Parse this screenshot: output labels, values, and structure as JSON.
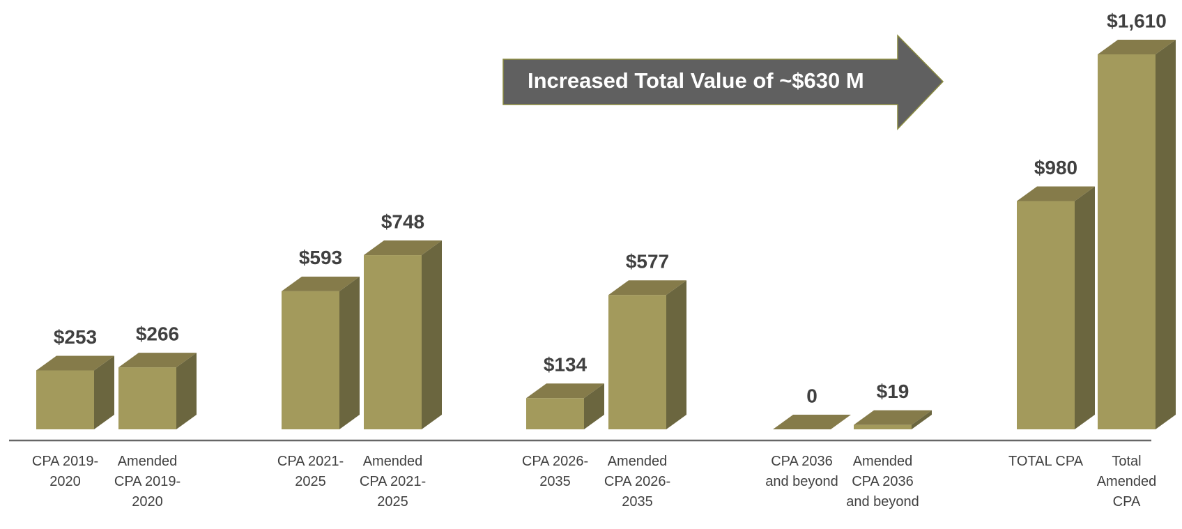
{
  "chart_data": {
    "type": "bar3d",
    "annotation": "Increased Total Value of ~$630 M",
    "categories": [
      "CPA 2019-2020",
      "Amended CPA 2019-2020",
      "CPA 2021-2025",
      "Amended CPA 2021-2025",
      "CPA 2026-2035",
      "Amended CPA 2026-2035",
      "CPA 2036 and beyond",
      "Amended CPA 2036 and beyond",
      "TOTAL CPA",
      "Total Amended CPA"
    ],
    "values": [
      253,
      266,
      593,
      748,
      134,
      577,
      0,
      19,
      980,
      1610
    ],
    "value_labels": [
      "$253",
      "$266",
      "$593",
      "$748",
      "$134",
      "$577",
      "0",
      "$19",
      "$980",
      "$1,610"
    ],
    "colors": {
      "front": "#a39a5c",
      "top": "#857b4a",
      "side": "#6b663f"
    }
  }
}
